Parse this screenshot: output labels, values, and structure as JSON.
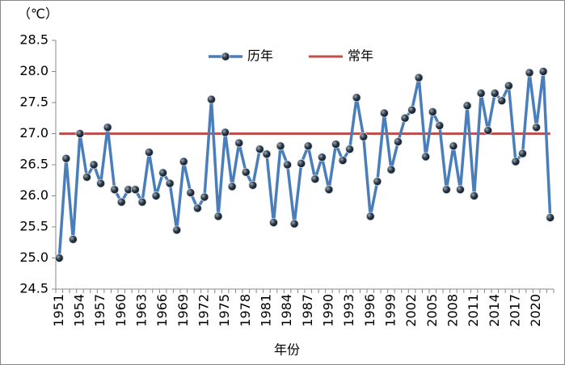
{
  "chart_data": {
    "type": "line",
    "y_label": "（℃）",
    "x_label": "年份",
    "categories": [
      "1951",
      null,
      null,
      "1954",
      null,
      null,
      "1957",
      null,
      null,
      "1960",
      null,
      null,
      "1963",
      null,
      null,
      "1966",
      null,
      null,
      "1969",
      null,
      null,
      "1972",
      null,
      null,
      "1975",
      null,
      null,
      "1978",
      null,
      null,
      "1981",
      null,
      null,
      "1984",
      null,
      null,
      "1987",
      null,
      null,
      "1990",
      null,
      null,
      "1993",
      null,
      null,
      "1996",
      null,
      null,
      "1999",
      null,
      null,
      "2002",
      null,
      null,
      "2005",
      null,
      null,
      "2008",
      null,
      null,
      "2011",
      null,
      null,
      "2014",
      null,
      null,
      "2017",
      null,
      null,
      "2020",
      null,
      null
    ],
    "series": [
      {
        "name": "历年",
        "color": "#4a7ebb",
        "marker": true,
        "values": [
          25.0,
          26.6,
          25.3,
          27.0,
          26.3,
          26.5,
          26.2,
          27.1,
          26.1,
          25.9,
          26.1,
          26.1,
          25.9,
          26.7,
          26.0,
          26.37,
          26.2,
          25.45,
          26.55,
          26.05,
          25.8,
          25.98,
          27.55,
          25.67,
          27.02,
          26.15,
          26.85,
          26.38,
          26.17,
          26.75,
          26.67,
          25.57,
          26.8,
          26.5,
          25.55,
          26.52,
          26.8,
          26.27,
          26.62,
          26.1,
          26.83,
          26.57,
          26.75,
          27.58,
          26.95,
          25.67,
          26.23,
          27.33,
          26.42,
          26.87,
          27.25,
          27.38,
          27.9,
          26.63,
          27.35,
          27.13,
          26.1,
          26.8,
          26.1,
          27.45,
          26.0,
          27.65,
          27.05,
          27.65,
          27.53,
          27.77,
          26.55,
          26.68,
          27.98,
          27.1,
          28.0,
          25.65
        ]
      },
      {
        "name": "常年",
        "color": "#c0504d",
        "marker": false,
        "values": [
          27.0,
          27.0,
          27.0,
          27.0,
          27.0,
          27.0,
          27.0,
          27.0,
          27.0,
          27.0,
          27.0,
          27.0,
          27.0,
          27.0,
          27.0,
          27.0,
          27.0,
          27.0,
          27.0,
          27.0,
          27.0,
          27.0,
          27.0,
          27.0,
          27.0,
          27.0,
          27.0,
          27.0,
          27.0,
          27.0,
          27.0,
          27.0,
          27.0,
          27.0,
          27.0,
          27.0,
          27.0,
          27.0,
          27.0,
          27.0,
          27.0,
          27.0,
          27.0,
          27.0,
          27.0,
          27.0,
          27.0,
          27.0,
          27.0,
          27.0,
          27.0,
          27.0,
          27.0,
          27.0,
          27.0,
          27.0,
          27.0,
          27.0,
          27.0,
          27.0,
          27.0,
          27.0,
          27.0,
          27.0,
          27.0,
          27.0,
          27.0,
          27.0,
          27.0,
          27.0,
          27.0,
          27.0
        ]
      }
    ],
    "ylim": [
      24.5,
      28.5
    ],
    "yticks": [
      24.5,
      {
        "value": 25,
        "label": "25.0"
      },
      25.5,
      {
        "value": 26,
        "label": "26.0"
      },
      26.5,
      {
        "value": 27,
        "label": "27.0"
      },
      27.5,
      {
        "value": 28,
        "label": "28.0"
      },
      28.5
    ],
    "grid": false,
    "legend": "top"
  }
}
